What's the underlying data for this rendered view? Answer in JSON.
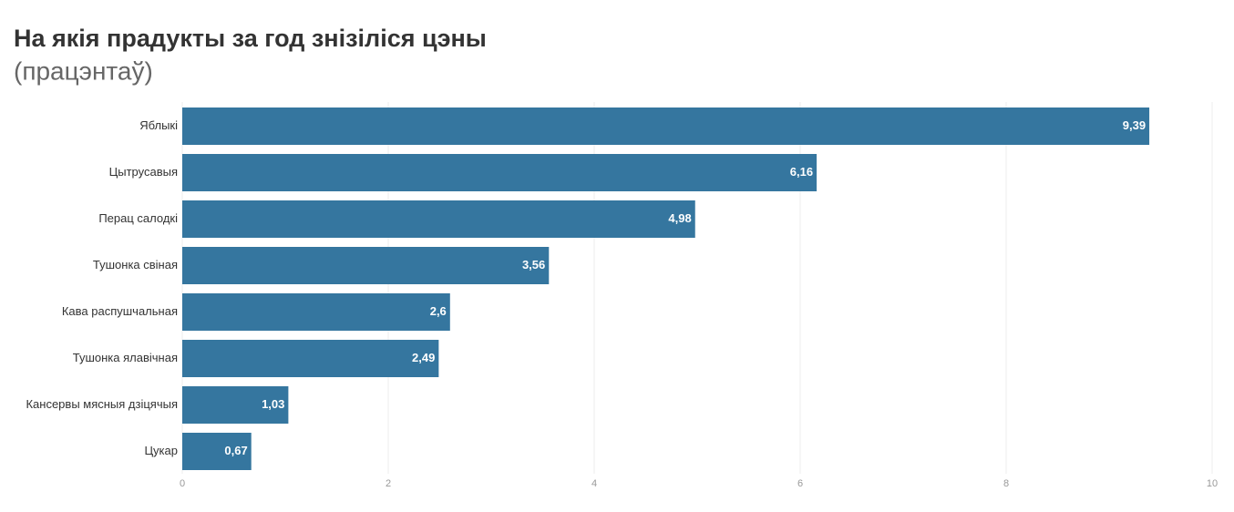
{
  "chart_data": {
    "type": "bar",
    "orientation": "horizontal",
    "title": "На якія прадукты за год знізіліся цэны",
    "subtitle": "(працэнтаў)",
    "categories": [
      "Яблыкі",
      "Цытрусавыя",
      "Перац салодкі",
      "Тушонка свіная",
      "Кава распушчальная",
      "Тушонка ялавічная",
      "Кансервы мясныя дзіцячыя",
      "Цукар"
    ],
    "values": [
      9.39,
      6.16,
      4.98,
      3.56,
      2.6,
      2.49,
      1.03,
      0.67
    ],
    "value_labels": [
      "9,39",
      "6,16",
      "4,98",
      "3,56",
      "2,6",
      "2,49",
      "1,03",
      "0,67"
    ],
    "color": "#35769f",
    "xlim": [
      0,
      10
    ],
    "xticks": [
      0,
      2,
      4,
      6,
      8,
      10
    ],
    "grid": true
  }
}
